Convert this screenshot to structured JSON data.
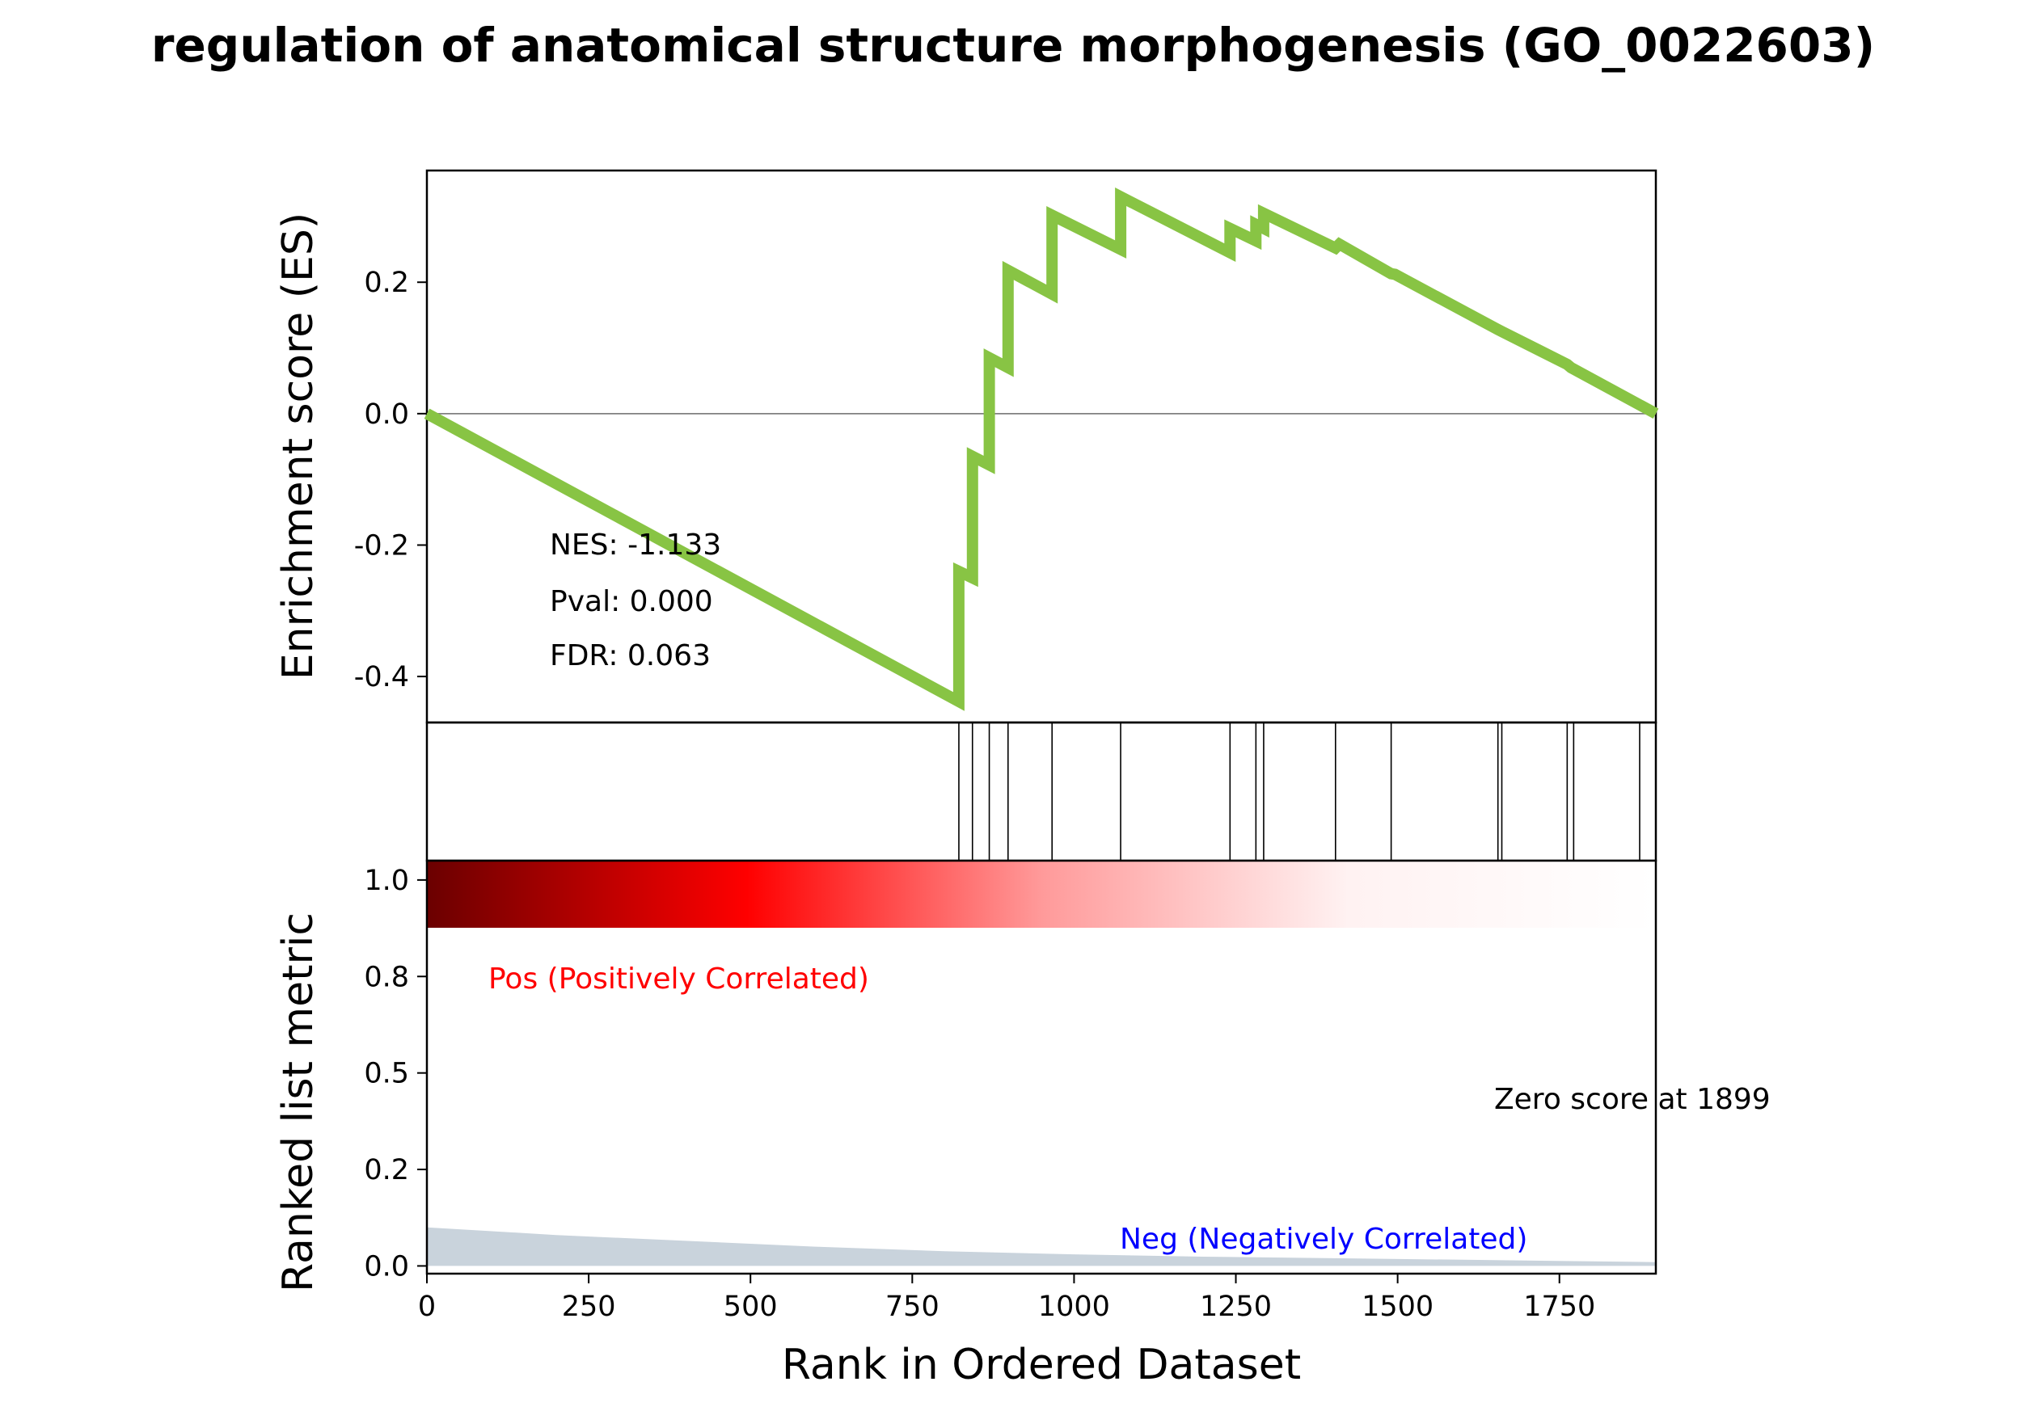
{
  "chart_data": {
    "type": "line",
    "title": "regulation of anatomical structure morphogenesis (GO_0022603)",
    "xlabel": "Rank in Ordered Dataset",
    "ylabel_top": "Enrichment score (ES)",
    "ylabel_bottom": "Ranked list metric",
    "xlim": [
      0,
      1899
    ],
    "ylim_top": [
      -0.47,
      0.37
    ],
    "ylim_bottom": [
      -0.02,
      1.05
    ],
    "x_ticks": [
      "0",
      "250",
      "500",
      "750",
      "1000",
      "1250",
      "1500",
      "1750"
    ],
    "x_tick_values": [
      0,
      250,
      500,
      750,
      1000,
      1250,
      1500,
      1750
    ],
    "y_ticks_top": [
      "-0.4",
      "-0.2",
      "0.0",
      "0.2"
    ],
    "y_tick_values_top": [
      -0.4,
      -0.2,
      0.0,
      0.2
    ],
    "y_ticks_bottom": [
      "0.0",
      "0.2",
      "0.5",
      "0.8",
      "1.0"
    ],
    "y_tick_values_bottom": [
      0.0,
      0.25,
      0.5,
      0.75,
      1.0
    ],
    "stats": {
      "nes": "NES: -1.133",
      "pval": "Pval: 0.000",
      "fdr": "FDR: 0.063"
    },
    "pos_label": "Pos (Positively Correlated)",
    "neg_label": "Neg (Negatively Correlated)",
    "zero_label": "Zero score at 1899",
    "series": [
      {
        "color": "#88c444",
        "x": [
          0,
          822,
          822,
          843,
          843,
          869,
          869,
          898,
          898,
          966,
          966,
          1072,
          1072,
          1241,
          1241,
          1281,
          1281,
          1293,
          1293,
          1404,
          1410,
          1490,
          1496,
          1655,
          1661,
          1762,
          1768,
          1899
        ],
        "y": [
          0.0,
          -0.438,
          -0.24,
          -0.25,
          -0.065,
          -0.078,
          0.085,
          0.07,
          0.218,
          0.182,
          0.302,
          0.25,
          0.33,
          0.245,
          0.282,
          0.263,
          0.288,
          0.282,
          0.305,
          0.252,
          0.258,
          0.213,
          0.212,
          0.128,
          0.125,
          0.075,
          0.07,
          0.0
        ]
      }
    ],
    "hits": [
      822,
      843,
      869,
      898,
      966,
      1072,
      1241,
      1281,
      1293,
      1404,
      1490,
      1655,
      1661,
      1762,
      1772,
      1874
    ],
    "ranked_metric": {
      "color": "#c9d3dc",
      "x": [
        0,
        200,
        400,
        600,
        800,
        1000,
        1200,
        1400,
        1600,
        1800,
        1899
      ],
      "y": [
        0.1,
        0.08,
        0.065,
        0.05,
        0.038,
        0.03,
        0.024,
        0.02,
        0.016,
        0.012,
        0.01
      ]
    },
    "colors": {
      "es_line": "#88c444",
      "zero_line": "#808080",
      "hit_line": "#000000",
      "pos_label": "#ff0000",
      "neg_label": "#0000ff",
      "ranked_fill": "#c9d3dc"
    }
  }
}
